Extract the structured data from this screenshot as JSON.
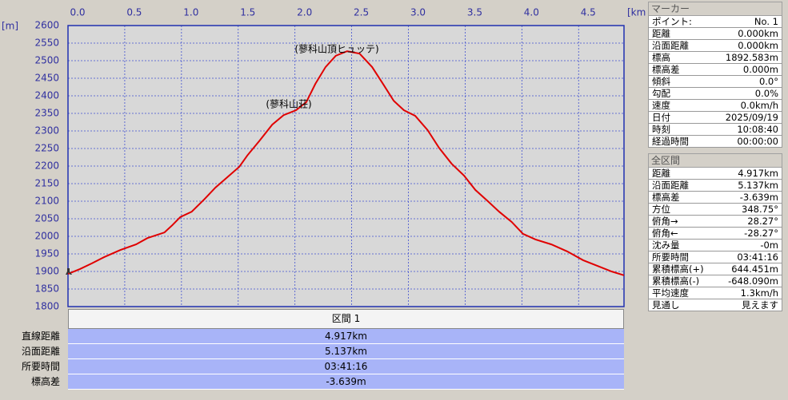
{
  "chart_data": {
    "type": "line",
    "x_unit": "[km]",
    "y_unit": "[m]",
    "x": [
      0,
      0.106,
      0.21,
      0.32,
      0.46,
      0.6,
      0.7,
      0.85,
      0.92,
      0.99,
      1.09,
      1.2,
      1.3,
      1.41,
      1.51,
      1.58,
      1.69,
      1.8,
      1.9,
      2.01,
      2.1,
      2.18,
      2.27,
      2.36,
      2.46,
      2.57,
      2.68,
      2.78,
      2.87,
      2.96,
      3.06,
      3.17,
      3.27,
      3.38,
      3.49,
      3.59,
      3.7,
      3.8,
      3.91,
      4.01,
      4.12,
      4.26,
      4.4,
      4.54,
      4.68,
      4.79,
      4.9
    ],
    "series": [
      {
        "color": "#e00000",
        "values": [
          1893,
          1907,
          1923,
          1941,
          1961,
          1977,
          1995,
          2011,
          2032,
          2055,
          2070,
          2105,
          2139,
          2170,
          2198,
          2230,
          2273,
          2318,
          2345,
          2359,
          2382,
          2434,
          2482,
          2514,
          2527,
          2520,
          2482,
          2432,
          2386,
          2359,
          2343,
          2302,
          2252,
          2207,
          2173,
          2132,
          2100,
          2070,
          2041,
          2007,
          1991,
          1977,
          1957,
          1932,
          1914,
          1900,
          1889
        ]
      }
    ],
    "xlim": [
      0,
      4.9
    ],
    "ylim": [
      1800,
      2600
    ],
    "xticks": [
      {
        "value": 0,
        "label": "0.0"
      },
      0.5,
      {
        "value": 1,
        "label": "1.0"
      },
      1.5,
      {
        "value": 2,
        "label": "2.0"
      },
      2.5,
      {
        "value": 3,
        "label": "3.0"
      },
      3.5,
      {
        "value": 4,
        "label": "4.0"
      },
      4.5
    ],
    "yticks": [
      1800,
      1850,
      1900,
      1950,
      2000,
      2050,
      2100,
      2150,
      2200,
      2250,
      2300,
      2350,
      2400,
      2450,
      2500,
      2550,
      2600
    ],
    "grid": true,
    "annotations": [
      "(蓼科山頂ヒュッテ)",
      "(蓼科山荘)"
    ]
  },
  "section_table": {
    "header": "区間 1",
    "rows": [
      [
        "直線距離",
        "4.917km"
      ],
      [
        "沿面距離",
        "5.137km"
      ],
      [
        "所要時間",
        "03:41:16"
      ],
      [
        "標高差",
        "-3.639m"
      ]
    ]
  },
  "marker_panel": {
    "title": "マーカー",
    "rows": [
      [
        "ポイント:",
        "No. 1"
      ],
      [
        "距離",
        "0.000km"
      ],
      [
        "沿面距離",
        "0.000km"
      ],
      [
        "標高",
        "1892.583m"
      ],
      [
        "標高差",
        "0.000m"
      ],
      [
        "傾斜",
        "0.0°"
      ],
      [
        "勾配",
        "0.0%"
      ],
      [
        "速度",
        "0.0km/h"
      ],
      [
        "日付",
        "2025/09/19"
      ],
      [
        "時刻",
        "10:08:40"
      ],
      [
        "経過時間",
        "00:00:00"
      ]
    ]
  },
  "total_panel": {
    "title": "全区間",
    "rows": [
      [
        "距離",
        "4.917km"
      ],
      [
        "沿面距離",
        "5.137km"
      ],
      [
        "標高差",
        "-3.639m"
      ],
      [
        "方位",
        "348.75°"
      ],
      [
        "俯角→",
        "28.27°"
      ],
      [
        "俯角←",
        "-28.27°"
      ],
      [
        "沈み量",
        "-0m"
      ],
      [
        "所要時間",
        "03:41:16"
      ],
      [
        "累積標高(+)",
        "644.451m"
      ],
      [
        "累積標高(-)",
        "-648.090m"
      ],
      [
        "平均速度",
        "1.3km/h"
      ],
      [
        "見通し",
        "見えます"
      ]
    ]
  }
}
